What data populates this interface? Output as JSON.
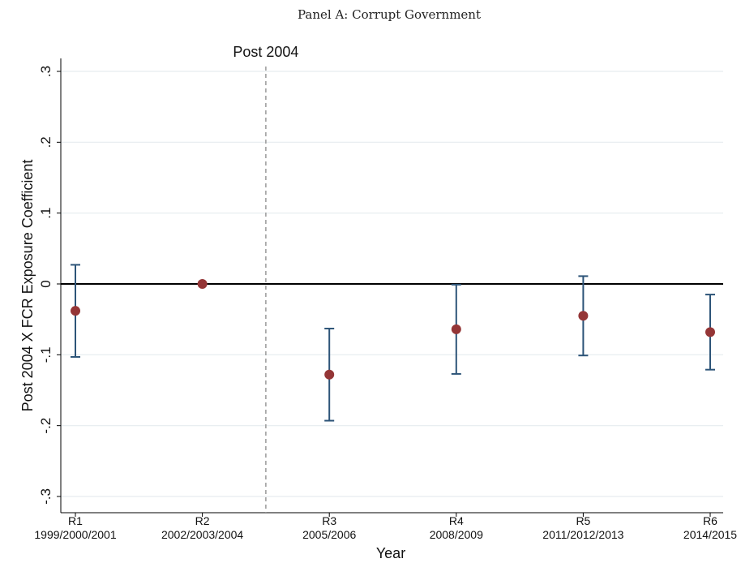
{
  "chart_data": {
    "type": "scatter",
    "title": "Panel A: Corrupt Government",
    "xlabel": "Year",
    "ylabel": "Post 2004 X FCR Exposure Coefficient",
    "ylim": [
      -0.3,
      0.3
    ],
    "yticks": [
      -0.3,
      -0.2,
      -0.1,
      0,
      0.1,
      0.2,
      0.3
    ],
    "ytick_labels": [
      "-.3",
      "-.2",
      "-.1",
      "0",
      ".1",
      ".2",
      ".3"
    ],
    "grid": true,
    "reference_line_y": 0,
    "vertical_line": {
      "after_category": "R2",
      "label": "Post 2004",
      "style": "dashed"
    },
    "categories": [
      {
        "round": "R1",
        "years": "1999/2000/2001"
      },
      {
        "round": "R2",
        "years": "2002/2003/2004"
      },
      {
        "round": "R3",
        "years": "2005/2006"
      },
      {
        "round": "R4",
        "years": "2008/2009"
      },
      {
        "round": "R5",
        "years": "2011/2012/2013"
      },
      {
        "round": "R6",
        "years": "2014/2015"
      }
    ],
    "series": [
      {
        "point_color": "#943536",
        "ci_color": "#2d5478",
        "estimates": [
          -0.038,
          0.0,
          -0.128,
          -0.064,
          -0.045,
          -0.068
        ],
        "ci_low": [
          -0.103,
          null,
          -0.193,
          -0.127,
          -0.101,
          -0.121
        ],
        "ci_high": [
          0.027,
          null,
          -0.063,
          -0.001,
          0.011,
          -0.015
        ]
      }
    ]
  }
}
